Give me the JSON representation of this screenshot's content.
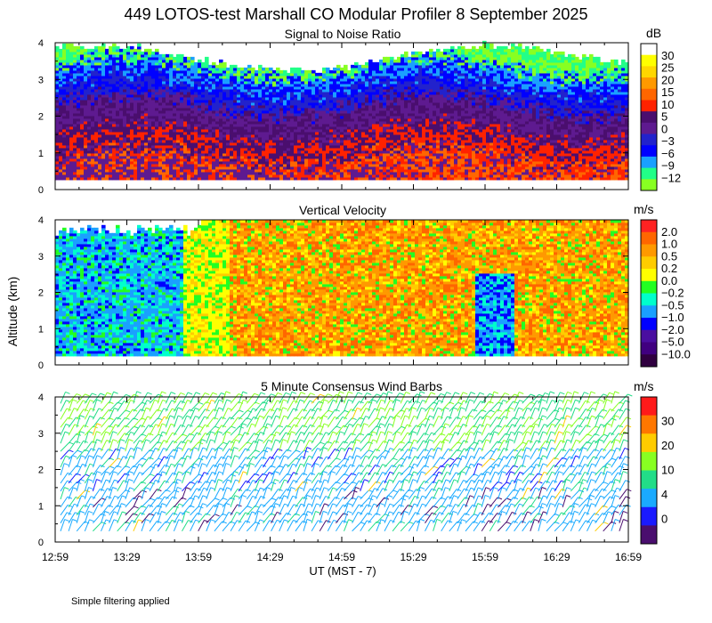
{
  "title": "449 LOTOS-test Marshall CO Modular Profiler  8 September 2025",
  "footnote": "Simple filtering applied",
  "colors": {
    "axis": "#000000",
    "background": "#ffffff"
  },
  "chart_data": [
    {
      "type": "heatmap",
      "title": "Signal to Noise Ratio",
      "xlabel": "UT  (MST - 7)",
      "ylabel": "Altitude (km)",
      "ylim": [
        0,
        4
      ],
      "ytick_labels": [
        "0",
        "1",
        "2",
        "3",
        "4"
      ],
      "x_tick_labels": [
        "12:59",
        "13:29",
        "13:59",
        "14:29",
        "14:59",
        "15:29",
        "15:59",
        "16:29",
        "16:59"
      ],
      "colorbar": {
        "unit": "dB",
        "labels": [
          "30",
          "25",
          "20",
          "15",
          "10",
          "5",
          "0",
          "−3",
          "−6",
          "−9",
          "−12"
        ],
        "colors": [
          "#ffffff",
          "#ffff00",
          "#ffd700",
          "#ff9900",
          "#ff6600",
          "#ff2200",
          "#4a0e6e",
          "#5e1a90",
          "#2222cc",
          "#0000ff",
          "#1aa0ff",
          "#22ff88",
          "#88ff22"
        ]
      }
    },
    {
      "type": "heatmap",
      "title": "Vertical Velocity",
      "ylabel": "Altitude (km)",
      "ylim": [
        0,
        4
      ],
      "ytick_labels": [
        "0",
        "1",
        "2",
        "3",
        "4"
      ],
      "colorbar": {
        "unit": "m/s",
        "labels": [
          "2.0",
          "1.0",
          "0.5",
          "0.2",
          "0.0",
          "−0.2",
          "−0.5",
          "−1.0",
          "−2.0",
          "−5.0",
          "−10.0"
        ],
        "colors": [
          "#ff2222",
          "#ff6600",
          "#ff9900",
          "#ffcc00",
          "#ffff00",
          "#22ff22",
          "#00ffcc",
          "#1aa0ff",
          "#0000ff",
          "#4a0ea0",
          "#400080",
          "#300040"
        ]
      }
    },
    {
      "type": "scatter",
      "title": "5 Minute Consensus Wind Barbs",
      "ylabel": "Altitude (km)",
      "ylim": [
        0,
        4
      ],
      "ytick_labels": [
        "0",
        "1",
        "2",
        "3",
        "4"
      ],
      "colorbar": {
        "unit": "m/s",
        "labels": [
          "30",
          "20",
          "10",
          "4",
          "0"
        ],
        "colors": [
          "#ff1a1a",
          "#ff7700",
          "#ffcc00",
          "#88ff22",
          "#22dd88",
          "#1aaaff",
          "#1a1aff",
          "#4a0e6e"
        ]
      }
    }
  ]
}
